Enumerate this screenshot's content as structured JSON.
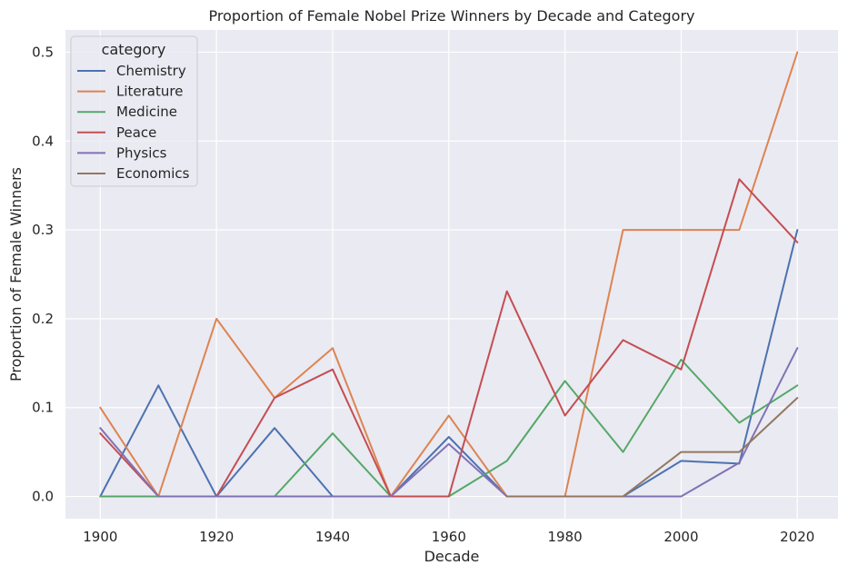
{
  "chart_data": {
    "type": "line",
    "title": "Proportion of Female Nobel Prize Winners by Decade and Category",
    "xlabel": "Decade",
    "ylabel": "Proportion of Female Winners",
    "x": [
      1900,
      1910,
      1920,
      1930,
      1940,
      1950,
      1960,
      1970,
      1980,
      1990,
      2000,
      2010,
      2020
    ],
    "xticks": [
      1900,
      1920,
      1940,
      1960,
      1980,
      2000,
      2020
    ],
    "yticks": [
      0.0,
      0.1,
      0.2,
      0.3,
      0.4,
      0.5
    ],
    "xlim": [
      1894,
      2027
    ],
    "ylim": [
      -0.025,
      0.525
    ],
    "grid": true,
    "legend": {
      "title": "category",
      "placement": "top-left"
    },
    "series": [
      {
        "name": "Chemistry",
        "color": "#4c72b0",
        "values": [
          0.0,
          0.125,
          0.0,
          0.077,
          0.0,
          0.0,
          0.067,
          0.0,
          0.0,
          0.0,
          0.04,
          0.037,
          0.3
        ]
      },
      {
        "name": "Literature",
        "color": "#dd8452",
        "values": [
          0.1,
          0.0,
          0.2,
          0.111,
          0.167,
          0.0,
          0.091,
          0.0,
          0.0,
          0.3,
          0.3,
          0.3,
          0.5
        ]
      },
      {
        "name": "Medicine",
        "color": "#55a868",
        "values": [
          0.0,
          0.0,
          0.0,
          0.0,
          0.071,
          0.0,
          0.0,
          0.04,
          0.13,
          0.05,
          0.154,
          0.083,
          0.125
        ]
      },
      {
        "name": "Peace",
        "color": "#c44e52",
        "values": [
          0.071,
          0.0,
          0.0,
          0.111,
          0.143,
          0.0,
          0.0,
          0.231,
          0.091,
          0.176,
          0.143,
          0.357,
          0.286
        ]
      },
      {
        "name": "Physics",
        "color": "#8172b3",
        "values": [
          0.077,
          0.0,
          0.0,
          0.0,
          0.0,
          0.0,
          0.059,
          0.0,
          0.0,
          0.0,
          0.0,
          0.038,
          0.167
        ]
      },
      {
        "name": "Economics",
        "color": "#937860",
        "values": [
          null,
          null,
          null,
          null,
          null,
          null,
          null,
          0.0,
          0.0,
          0.0,
          0.05,
          0.05,
          0.111
        ]
      }
    ]
  }
}
